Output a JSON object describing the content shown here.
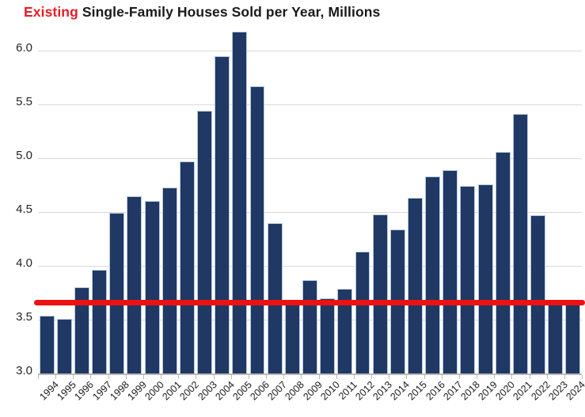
{
  "chart_data": {
    "type": "bar",
    "title": {
      "highlight": "Existing",
      "rest": " Single-Family Houses Sold per Year, Millions"
    },
    "categories": [
      "1994",
      "1995",
      "1996",
      "1997",
      "1998",
      "1999",
      "2000",
      "2001",
      "2002",
      "2003",
      "2004",
      "2005",
      "2006",
      "2007",
      "2008",
      "2009",
      "2010",
      "2011",
      "2012",
      "2013",
      "2014",
      "2015",
      "2016",
      "2017",
      "2018",
      "2019",
      "2020",
      "2021",
      "2022",
      "2023",
      "2024"
    ],
    "values": [
      3.54,
      3.51,
      3.8,
      3.96,
      4.49,
      4.65,
      4.6,
      4.73,
      4.97,
      5.44,
      5.95,
      6.18,
      5.67,
      4.4,
      3.64,
      3.87,
      3.7,
      3.79,
      4.13,
      4.48,
      4.34,
      4.63,
      4.83,
      4.89,
      4.74,
      4.76,
      5.06,
      5.41,
      4.47,
      3.65,
      3.66
    ],
    "ylim": [
      3.0,
      6.25
    ],
    "yticks": [
      3.0,
      3.5,
      4.0,
      4.5,
      5.0,
      5.5,
      6.0
    ],
    "ytick_labels": [
      "3.0",
      "3.5",
      "4.0",
      "4.5",
      "5.0",
      "5.5",
      "6.0"
    ],
    "grid": true,
    "legend": false,
    "reference_line": {
      "value": 3.66
    },
    "colors": {
      "bar_fill": "#1f3864",
      "bar_border": "#b9c9e2",
      "reference_line": "#ee1111",
      "title_highlight": "#e41e26",
      "title_text": "#1a1a1a",
      "gridline": "#d9d9d9",
      "axis_line": "#b9b9b9"
    }
  }
}
